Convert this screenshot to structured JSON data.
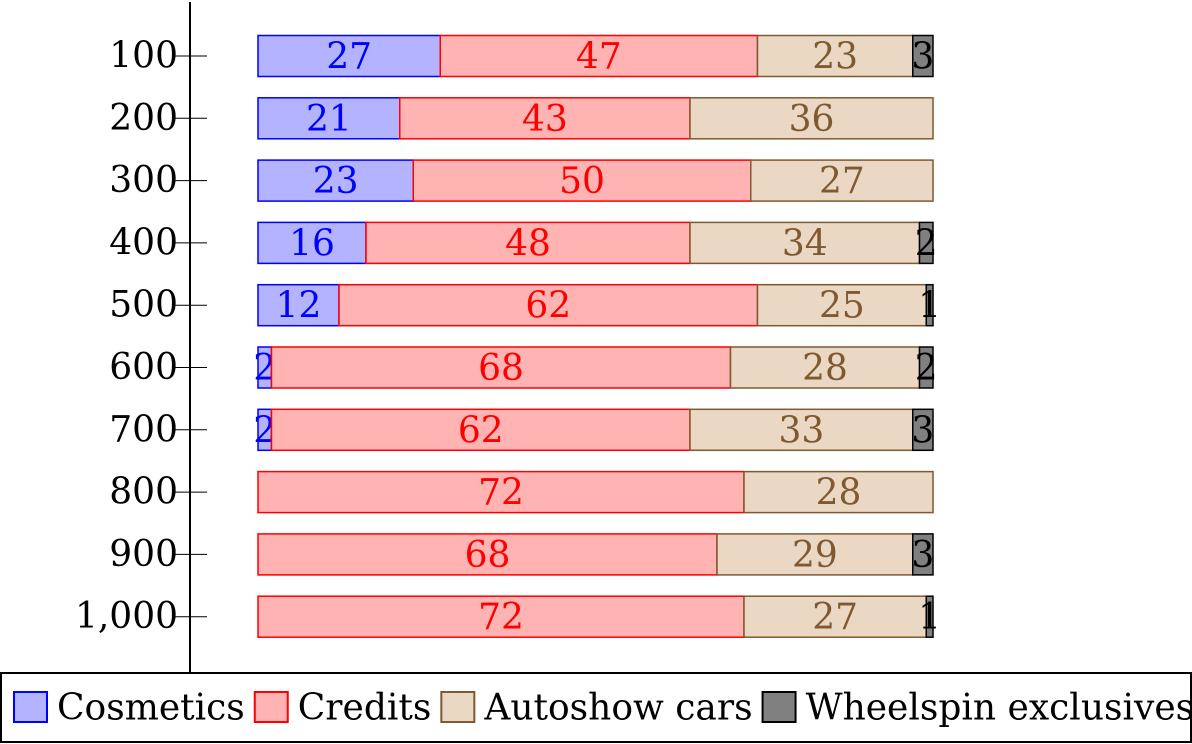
{
  "chart_data": {
    "type": "bar",
    "orientation": "horizontal",
    "stacked": true,
    "normalized_percent": true,
    "categories": [
      "100",
      "200",
      "300",
      "400",
      "500",
      "600",
      "700",
      "800",
      "900",
      "1,000"
    ],
    "series": [
      {
        "name": "Cosmetics",
        "values": [
          27,
          21,
          23,
          16,
          12,
          2,
          2,
          0,
          0,
          0
        ],
        "fill": "#b3b3ff",
        "stroke": "#0000ff",
        "label_color": "#0000ff"
      },
      {
        "name": "Credits",
        "values": [
          47,
          43,
          50,
          48,
          62,
          68,
          62,
          72,
          68,
          72
        ],
        "fill": "#ffb3b3",
        "stroke": "#ff0000",
        "label_color": "#ff0000"
      },
      {
        "name": "Autoshow cars",
        "values": [
          23,
          36,
          27,
          34,
          25,
          28,
          33,
          28,
          29,
          27
        ],
        "fill": "#ead8c4",
        "stroke": "#7f5930",
        "label_color": "#7f5930"
      },
      {
        "name": "Wheelspin exclusives",
        "values": [
          3,
          0,
          0,
          2,
          1,
          2,
          3,
          0,
          3,
          1
        ],
        "fill": "#808080",
        "stroke": "#000000",
        "label_color": "#000000"
      }
    ],
    "title": "",
    "xlabel": "",
    "ylabel": "",
    "xlim": [
      0,
      100
    ],
    "grid": false,
    "legend_position": "bottom"
  }
}
